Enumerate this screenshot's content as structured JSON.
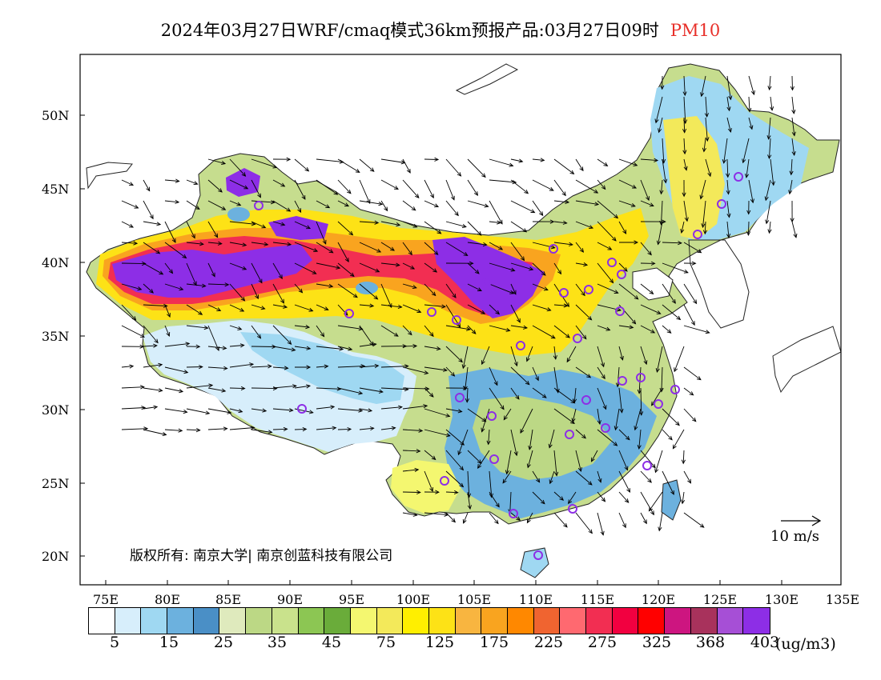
{
  "header": {
    "title": "2024年03月27日WRF/cmaq模式36km预报产品:03月27日09时",
    "variable": "PM10"
  },
  "axes": {
    "lat_labels": [
      "50N",
      "45N",
      "40N",
      "35N",
      "30N",
      "25N",
      "20N"
    ],
    "lon_labels": [
      "75E",
      "80E",
      "85E",
      "90E",
      "95E",
      "100E",
      "105E",
      "110E",
      "115E",
      "120E",
      "125E",
      "130E",
      "135E"
    ]
  },
  "copyright": "版权所有: 南京大学| 南京创蓝科技有限公司",
  "wind_scale": "10 m/s",
  "legend": {
    "colors": [
      "#ffffff",
      "#d7eefb",
      "#9fd8f2",
      "#6cb1de",
      "#4a8fc6",
      "#dfeabd",
      "#bcd885",
      "#c9e28c",
      "#8cc653",
      "#6aac3a",
      "#f4f770",
      "#f3e95a",
      "#ffef00",
      "#fde216",
      "#f8b540",
      "#f9a41f",
      "#ff8800",
      "#f06430",
      "#ff6970",
      "#f22e52",
      "#f20040",
      "#ff0000",
      "#cd1580",
      "#a8325c",
      "#a64fd6",
      "#8d2ee6"
    ],
    "ticks": [
      "5",
      "15",
      "25",
      "35",
      "45",
      "75",
      "125",
      "175",
      "225",
      "275",
      "325",
      "368",
      "403"
    ],
    "unit": "(ug/m3)"
  }
}
